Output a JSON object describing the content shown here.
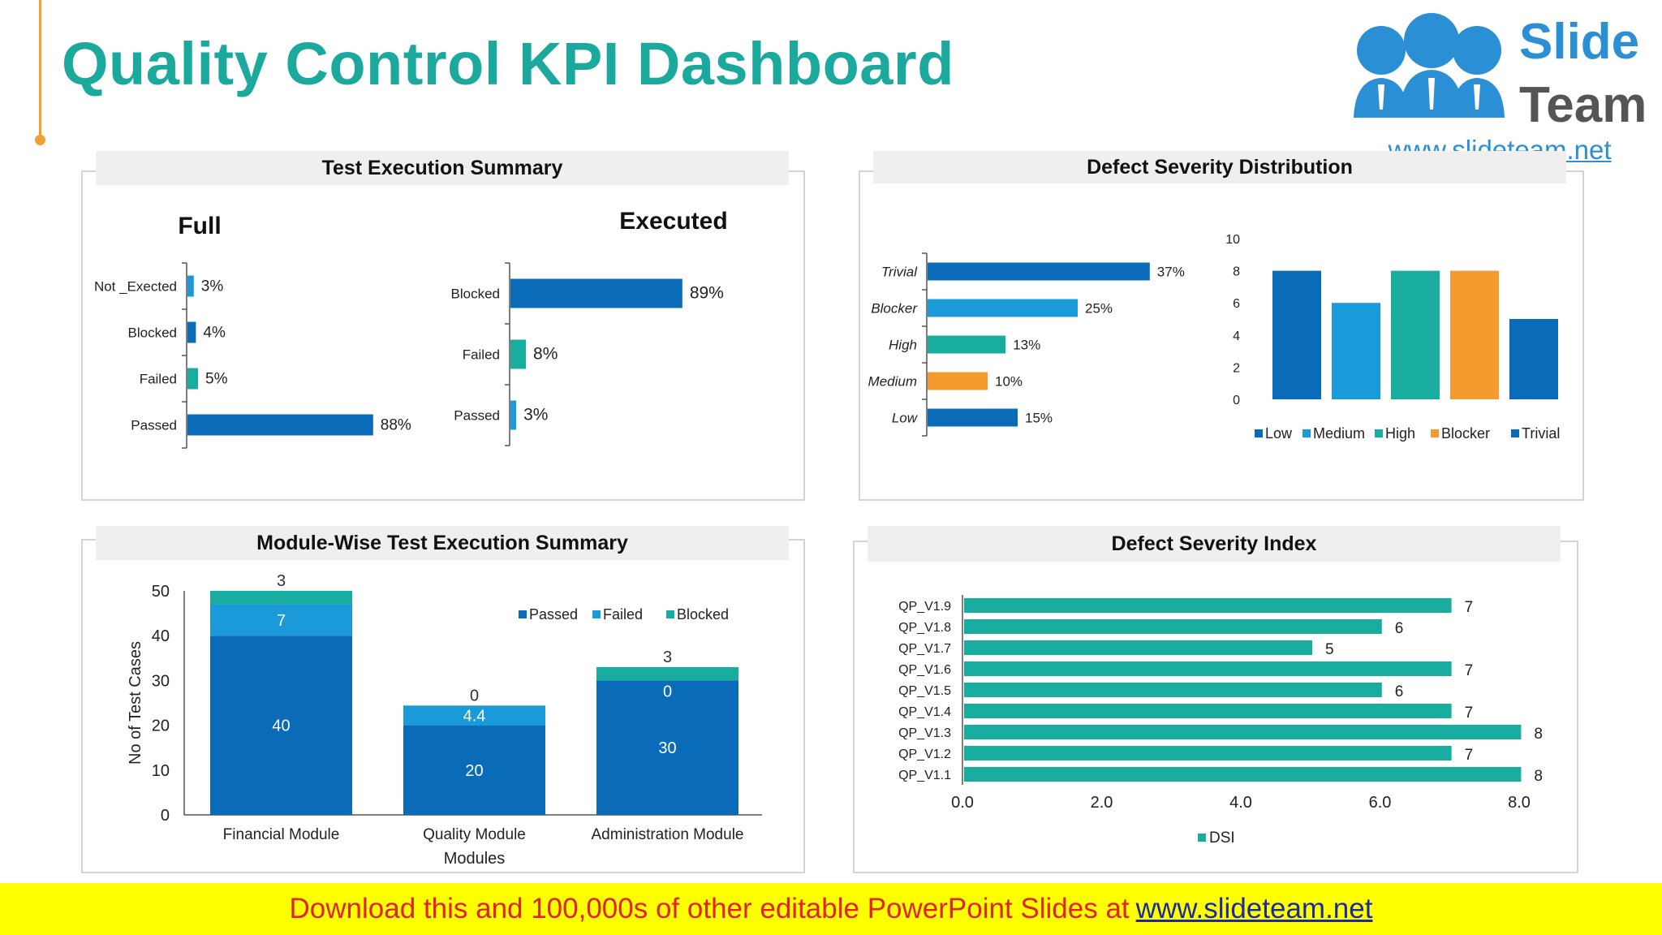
{
  "title": "Quality Control KPI Dashboard",
  "logo": {
    "line1": "Slide",
    "line2": "Team",
    "url": "www.slideteam.net"
  },
  "colors": {
    "dark_blue": "#0a6bb8",
    "light_blue": "#1a9ad9",
    "teal": "#18ad9e",
    "orange": "#f59a2e",
    "title": "#1aa99c"
  },
  "panels": {
    "test_execution": {
      "title": "Test Execution Summary",
      "full_label": "Full",
      "executed_label": "Executed"
    },
    "defect_distribution": {
      "title": "Defect Severity Distribution"
    },
    "module_wise": {
      "title": "Module-Wise Test Execution Summary"
    },
    "dsi": {
      "title": "Defect Severity Index"
    }
  },
  "chart_data": [
    {
      "id": "full",
      "type": "bar",
      "orientation": "horizontal",
      "title": "Full",
      "categories": [
        "Not _Exected",
        "Blocked",
        "Failed",
        "Passed"
      ],
      "values": [
        3,
        4,
        5,
        88
      ],
      "value_labels": [
        "3%",
        "4%",
        "5%",
        "88%"
      ],
      "colors": [
        "#1a9ad9",
        "#0a6bb8",
        "#18ad9e",
        "#0a6bb8"
      ]
    },
    {
      "id": "executed",
      "type": "bar",
      "orientation": "horizontal",
      "title": "Executed",
      "categories": [
        "Blocked",
        "Failed",
        "Passed"
      ],
      "values": [
        89,
        8,
        3
      ],
      "value_labels": [
        "89%",
        "8%",
        "3%"
      ],
      "colors": [
        "#0a6bb8",
        "#18ad9e",
        "#1a9ad9"
      ]
    },
    {
      "id": "severity_pct",
      "type": "bar",
      "orientation": "horizontal",
      "categories": [
        "Trivial",
        "Blocker",
        "High",
        "Medium",
        "Low"
      ],
      "values": [
        37,
        25,
        13,
        10,
        15
      ],
      "value_labels": [
        "37%",
        "25%",
        "13%",
        "10%",
        "15%"
      ],
      "colors": [
        "#0a6bb8",
        "#1a9ad9",
        "#18ad9e",
        "#f59a2e",
        "#0a6bb8"
      ]
    },
    {
      "id": "severity_count",
      "type": "bar",
      "categories": [
        "Low",
        "Medium",
        "High",
        "Blocker",
        "Trivial"
      ],
      "values": [
        8,
        6,
        8,
        8,
        5
      ],
      "colors": [
        "#0a6bb8",
        "#1a9ad9",
        "#18ad9e",
        "#f59a2e",
        "#0a6bb8"
      ],
      "ylim": [
        0,
        10
      ],
      "yticks": [
        0,
        2,
        4,
        6,
        8,
        10
      ],
      "legend": "bottom"
    },
    {
      "id": "module_wise",
      "type": "bar",
      "stacked": true,
      "categories": [
        "Financial Module",
        "Quality Module",
        "Administration Module"
      ],
      "series": [
        {
          "name": "Passed",
          "values": [
            40,
            20,
            30
          ],
          "labels": [
            "40",
            "20",
            "30"
          ],
          "color": "#0a6bb8"
        },
        {
          "name": "Failed",
          "values": [
            7,
            4.4,
            0
          ],
          "labels": [
            "7",
            "4.4",
            "0"
          ],
          "color": "#1a9ad9"
        },
        {
          "name": "Blocked",
          "values": [
            3,
            0,
            3
          ],
          "labels": [
            "3",
            "0",
            "3"
          ],
          "color": "#18ad9e"
        }
      ],
      "xlabel": "Modules",
      "ylabel": "No of Test Cases",
      "ylim": [
        0,
        50
      ],
      "yticks": [
        0,
        10,
        20,
        30,
        40,
        50
      ],
      "legend": "top-right"
    },
    {
      "id": "dsi",
      "type": "bar",
      "orientation": "horizontal",
      "categories": [
        "QP_V1.9",
        "QP_V1.8",
        "QP_V1.7",
        "QP_V1.6",
        "QP_V1.5",
        "QP_V1.4",
        "QP_V1.3",
        "QP_V1.2",
        "QP_V1.1"
      ],
      "series": [
        {
          "name": "DSI",
          "values": [
            7,
            6,
            5,
            7,
            6,
            7,
            8,
            7,
            8
          ],
          "color": "#18ad9e"
        }
      ],
      "xlim": [
        0,
        8
      ],
      "xticks": [
        "0.0",
        "2.0",
        "4.0",
        "6.0",
        "8.0"
      ],
      "legend": "bottom"
    }
  ],
  "footer": {
    "text": "Download this and 100,000s of other editable PowerPoint Slides at",
    "link": "www.slideteam.net"
  }
}
